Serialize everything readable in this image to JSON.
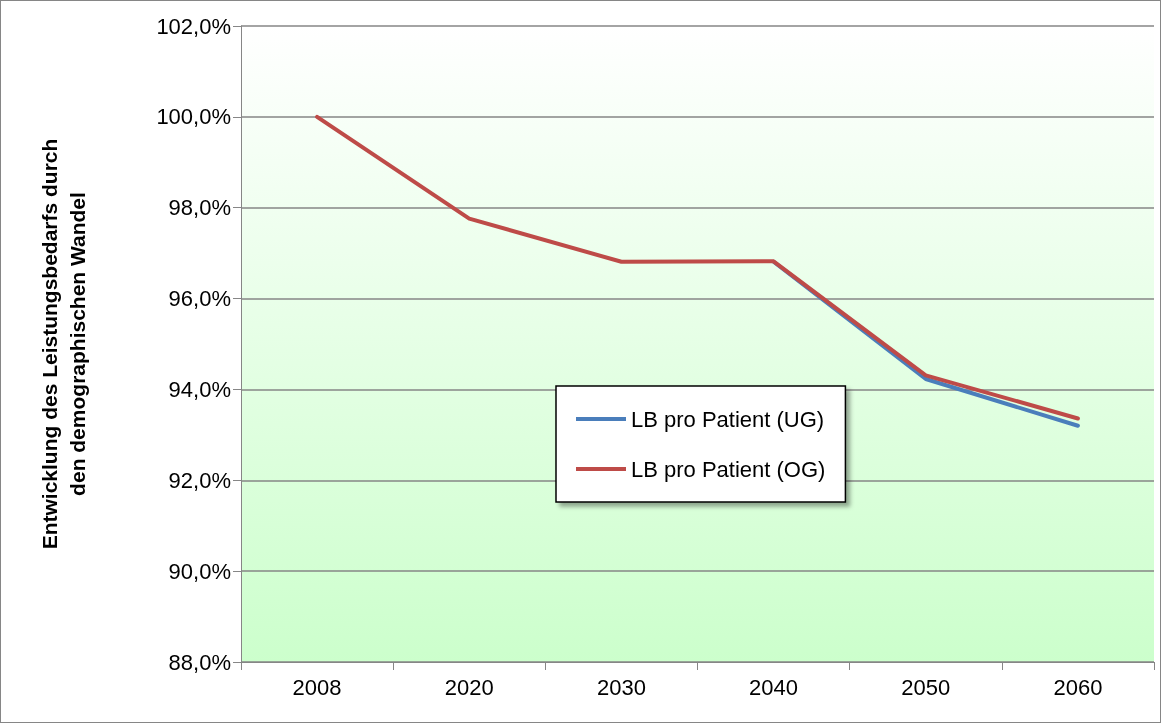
{
  "chart_data": {
    "type": "line",
    "ylabel": "Entwicklung des Leistungsbedarfs durch\nden demographischen Wandel",
    "categories": [
      "2008",
      "2020",
      "2030",
      "2040",
      "2050",
      "2060"
    ],
    "series": [
      {
        "name": "LB pro Patient (UG)",
        "color": "#4a7ebb",
        "values": [
          null,
          null,
          null,
          96.81,
          94.23,
          93.2
        ]
      },
      {
        "name": "LB pro Patient (OG)",
        "color": "#be4b48",
        "values": [
          100,
          97.76,
          96.81,
          96.82,
          94.31,
          93.36
        ]
      }
    ],
    "ylim": [
      88,
      102
    ],
    "yticks": [
      {
        "value": 88,
        "label": "88,0%"
      },
      {
        "value": 90,
        "label": "90,0%"
      },
      {
        "value": 92,
        "label": "92,0%"
      },
      {
        "value": 94,
        "label": "94,0%"
      },
      {
        "value": 96,
        "label": "96,0%"
      },
      {
        "value": 98,
        "label": "98,0%"
      },
      {
        "value": 100,
        "label": "100,0%"
      },
      {
        "value": 102,
        "label": "102,0%"
      }
    ],
    "grid": "y",
    "legend": "center",
    "marker": "none",
    "line_style": "solid"
  }
}
